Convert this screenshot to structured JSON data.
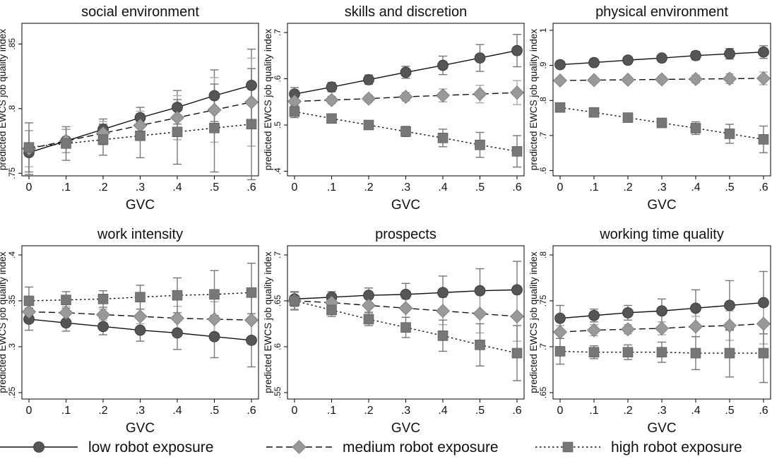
{
  "legend": {
    "items": [
      {
        "label": "low robot exposure",
        "style": "solid",
        "marker": "circle",
        "color": "#555555"
      },
      {
        "label": "medium robot exposure",
        "style": "dash",
        "marker": "diamond",
        "color": "#999999"
      },
      {
        "label": "high robot exposure",
        "style": "dot",
        "marker": "square",
        "color": "#777777"
      }
    ]
  },
  "chart_data": [
    {
      "type": "line",
      "title": "social environment",
      "xlabel": "GVC",
      "ylabel": "predicted EWCS job quality index",
      "x": [
        0,
        0.1,
        0.2,
        0.3,
        0.4,
        0.5,
        0.6
      ],
      "xticklabels": [
        "0",
        ".1",
        ".2",
        ".3",
        ".4",
        ".5",
        ".6"
      ],
      "ylim": [
        0.748,
        0.866
      ],
      "yticks": [
        0.75,
        0.8,
        0.85
      ],
      "yticklabels": [
        ".75",
        ".8",
        ".85"
      ],
      "series": [
        {
          "name": "low robot exposure",
          "values": [
            0.766,
            0.775,
            0.784,
            0.793,
            0.801,
            0.81,
            0.818
          ],
          "lower": [
            0.749,
            0.766,
            0.776,
            0.785,
            0.788,
            0.79,
            0.789
          ],
          "upper": [
            0.783,
            0.784,
            0.792,
            0.801,
            0.814,
            0.83,
            0.846
          ]
        },
        {
          "name": "medium robot exposure",
          "values": [
            0.769,
            0.775,
            0.781,
            0.787,
            0.793,
            0.799,
            0.805
          ],
          "lower": [
            0.755,
            0.766,
            0.772,
            0.776,
            0.776,
            0.774,
            0.771
          ],
          "upper": [
            0.783,
            0.784,
            0.79,
            0.798,
            0.81,
            0.824,
            0.839
          ]
        },
        {
          "name": "high robot exposure",
          "values": [
            0.77,
            0.773,
            0.776,
            0.779,
            0.782,
            0.785,
            0.788
          ],
          "lower": [
            0.751,
            0.76,
            0.764,
            0.762,
            0.757,
            0.751,
            0.745
          ],
          "upper": [
            0.789,
            0.786,
            0.788,
            0.796,
            0.807,
            0.819,
            0.831
          ]
        }
      ]
    },
    {
      "type": "line",
      "title": "skills and discretion",
      "xlabel": "GVC",
      "ylabel": "predicted EWCS job quality index",
      "x": [
        0,
        0.1,
        0.2,
        0.3,
        0.4,
        0.5,
        0.6
      ],
      "xticklabels": [
        "0",
        ".1",
        ".2",
        ".3",
        ".4",
        ".5",
        ".6"
      ],
      "ylim": [
        0.39,
        0.72
      ],
      "yticks": [
        0.4,
        0.5,
        0.6,
        0.7
      ],
      "yticklabels": [
        ".4",
        ".5",
        ".6",
        ".7"
      ],
      "series": [
        {
          "name": "low robot exposure",
          "values": [
            0.567,
            0.582,
            0.598,
            0.614,
            0.629,
            0.645,
            0.661
          ],
          "lower": [
            0.553,
            0.572,
            0.588,
            0.601,
            0.609,
            0.616,
            0.626
          ],
          "upper": [
            0.581,
            0.592,
            0.608,
            0.627,
            0.649,
            0.674,
            0.696
          ]
        },
        {
          "name": "medium robot exposure",
          "values": [
            0.551,
            0.554,
            0.557,
            0.561,
            0.564,
            0.567,
            0.57
          ],
          "lower": [
            0.54,
            0.546,
            0.55,
            0.552,
            0.55,
            0.548,
            0.544
          ],
          "upper": [
            0.562,
            0.562,
            0.564,
            0.57,
            0.578,
            0.586,
            0.596
          ]
        },
        {
          "name": "high robot exposure",
          "values": [
            0.529,
            0.514,
            0.5,
            0.486,
            0.472,
            0.457,
            0.443
          ],
          "lower": [
            0.516,
            0.505,
            0.492,
            0.475,
            0.453,
            0.43,
            0.409
          ],
          "upper": [
            0.542,
            0.523,
            0.508,
            0.497,
            0.491,
            0.484,
            0.477
          ]
        }
      ]
    },
    {
      "type": "line",
      "title": "physical environment",
      "xlabel": "GVC",
      "ylabel": "predicted EWCS job quality index",
      "x": [
        0,
        0.1,
        0.2,
        0.3,
        0.4,
        0.5,
        0.6
      ],
      "xticklabels": [
        "0",
        ".1",
        ".2",
        ".3",
        ".4",
        ".5",
        ".6"
      ],
      "ylim": [
        0.585,
        1.02
      ],
      "yticks": [
        0.6,
        0.7,
        0.8,
        0.9,
        1.0
      ],
      "yticklabels": [
        ".6",
        ".7",
        ".8",
        ".9",
        "1"
      ],
      "series": [
        {
          "name": "low robot exposure",
          "values": [
            0.902,
            0.908,
            0.915,
            0.921,
            0.928,
            0.933,
            0.938
          ],
          "lower": [
            0.895,
            0.902,
            0.908,
            0.912,
            0.916,
            0.918,
            0.92
          ],
          "upper": [
            0.909,
            0.914,
            0.922,
            0.93,
            0.94,
            0.948,
            0.956
          ]
        },
        {
          "name": "medium robot exposure",
          "values": [
            0.857,
            0.858,
            0.859,
            0.86,
            0.861,
            0.862,
            0.863
          ],
          "lower": [
            0.85,
            0.852,
            0.852,
            0.852,
            0.85,
            0.848,
            0.845
          ],
          "upper": [
            0.864,
            0.864,
            0.866,
            0.868,
            0.872,
            0.876,
            0.881
          ]
        },
        {
          "name": "high robot exposure",
          "values": [
            0.78,
            0.766,
            0.751,
            0.736,
            0.721,
            0.705,
            0.689
          ],
          "lower": [
            0.77,
            0.758,
            0.744,
            0.727,
            0.703,
            0.678,
            0.651
          ],
          "upper": [
            0.79,
            0.774,
            0.758,
            0.745,
            0.739,
            0.732,
            0.727
          ]
        }
      ]
    },
    {
      "type": "line",
      "title": "work intensity",
      "xlabel": "GVC",
      "ylabel": "predicted EWCS job quality index",
      "x": [
        0,
        0.1,
        0.2,
        0.3,
        0.4,
        0.5,
        0.6
      ],
      "xticklabels": [
        "0",
        ".1",
        ".2",
        ".3",
        ".4",
        ".5",
        ".6"
      ],
      "ylim": [
        0.243,
        0.41
      ],
      "yticks": [
        0.25,
        0.3,
        0.35,
        0.4
      ],
      "yticklabels": [
        ".25",
        ".3",
        ".35",
        ".4"
      ],
      "series": [
        {
          "name": "low robot exposure",
          "values": [
            0.33,
            0.326,
            0.322,
            0.318,
            0.315,
            0.311,
            0.307
          ],
          "lower": [
            0.318,
            0.317,
            0.313,
            0.306,
            0.297,
            0.288,
            0.278
          ],
          "upper": [
            0.342,
            0.335,
            0.331,
            0.33,
            0.333,
            0.334,
            0.336
          ]
        },
        {
          "name": "medium robot exposure",
          "values": [
            0.338,
            0.337,
            0.335,
            0.333,
            0.331,
            0.33,
            0.329
          ],
          "lower": [
            0.329,
            0.33,
            0.329,
            0.325,
            0.318,
            0.311,
            0.303
          ],
          "upper": [
            0.347,
            0.344,
            0.341,
            0.341,
            0.344,
            0.349,
            0.355
          ]
        },
        {
          "name": "high robot exposure",
          "values": [
            0.35,
            0.351,
            0.352,
            0.354,
            0.356,
            0.357,
            0.359
          ],
          "lower": [
            0.335,
            0.342,
            0.343,
            0.341,
            0.337,
            0.332,
            0.327
          ],
          "upper": [
            0.365,
            0.36,
            0.361,
            0.367,
            0.375,
            0.383,
            0.391
          ]
        }
      ]
    },
    {
      "type": "line",
      "title": "prospects",
      "xlabel": "GVC",
      "ylabel": "predicted EWCS job quality index",
      "x": [
        0,
        0.1,
        0.2,
        0.3,
        0.4,
        0.5,
        0.6
      ],
      "xticklabels": [
        "0",
        ".1",
        ".2",
        ".3",
        ".4",
        ".5",
        ".6"
      ],
      "ylim": [
        0.543,
        0.71
      ],
      "yticks": [
        0.55,
        0.6,
        0.65,
        0.7
      ],
      "yticklabels": [
        ".55",
        ".6",
        ".65",
        ".7"
      ],
      "series": [
        {
          "name": "low robot exposure",
          "values": [
            0.652,
            0.654,
            0.656,
            0.657,
            0.659,
            0.661,
            0.662
          ],
          "lower": [
            0.644,
            0.648,
            0.648,
            0.645,
            0.641,
            0.637,
            0.632
          ],
          "upper": [
            0.66,
            0.66,
            0.664,
            0.669,
            0.677,
            0.685,
            0.693
          ]
        },
        {
          "name": "medium robot exposure",
          "values": [
            0.65,
            0.648,
            0.645,
            0.642,
            0.639,
            0.636,
            0.633
          ],
          "lower": [
            0.641,
            0.642,
            0.638,
            0.632,
            0.624,
            0.615,
            0.606
          ],
          "upper": [
            0.659,
            0.654,
            0.652,
            0.652,
            0.654,
            0.657,
            0.66
          ]
        },
        {
          "name": "high robot exposure",
          "values": [
            0.65,
            0.64,
            0.63,
            0.621,
            0.612,
            0.602,
            0.593
          ],
          "lower": [
            0.64,
            0.633,
            0.623,
            0.61,
            0.595,
            0.579,
            0.563
          ],
          "upper": [
            0.66,
            0.647,
            0.637,
            0.632,
            0.629,
            0.625,
            0.623
          ]
        }
      ]
    },
    {
      "type": "line",
      "title": "working time quality",
      "xlabel": "GVC",
      "ylabel": "predicted EWCS job quality index",
      "x": [
        0,
        0.1,
        0.2,
        0.3,
        0.4,
        0.5,
        0.6
      ],
      "xticklabels": [
        "0",
        ".1",
        ".2",
        ".3",
        ".4",
        ".5",
        ".6"
      ],
      "ylim": [
        0.643,
        0.81
      ],
      "yticks": [
        0.65,
        0.7,
        0.75,
        0.8
      ],
      "yticklabels": [
        ".65",
        ".7",
        ".75",
        ".8"
      ],
      "series": [
        {
          "name": "low robot exposure",
          "values": [
            0.731,
            0.734,
            0.737,
            0.739,
            0.742,
            0.745,
            0.748
          ],
          "lower": [
            0.717,
            0.727,
            0.729,
            0.727,
            0.722,
            0.718,
            0.714
          ],
          "upper": [
            0.745,
            0.741,
            0.745,
            0.752,
            0.762,
            0.772,
            0.782
          ]
        },
        {
          "name": "medium robot exposure",
          "values": [
            0.716,
            0.718,
            0.719,
            0.72,
            0.722,
            0.723,
            0.725
          ],
          "lower": [
            0.709,
            0.712,
            0.714,
            0.713,
            0.711,
            0.707,
            0.703
          ],
          "upper": [
            0.723,
            0.724,
            0.724,
            0.727,
            0.733,
            0.739,
            0.747
          ]
        },
        {
          "name": "high robot exposure",
          "values": [
            0.695,
            0.694,
            0.694,
            0.694,
            0.693,
            0.693,
            0.693
          ],
          "lower": [
            0.681,
            0.687,
            0.686,
            0.683,
            0.675,
            0.667,
            0.661
          ],
          "upper": [
            0.709,
            0.701,
            0.702,
            0.705,
            0.711,
            0.719,
            0.725
          ]
        }
      ]
    }
  ]
}
